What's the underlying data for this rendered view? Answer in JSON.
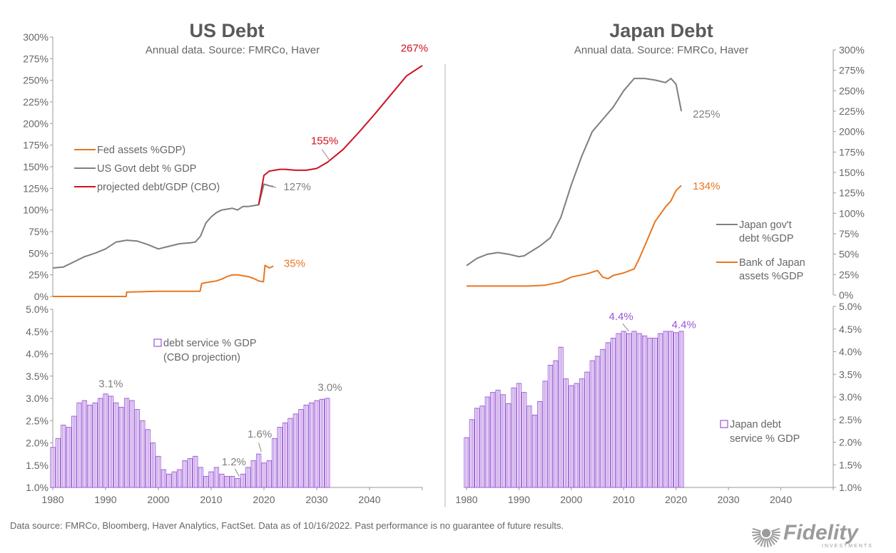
{
  "colors": {
    "fed": "#E87722",
    "govt": "#7F7F7F",
    "cbo": "#D0101E",
    "debt_service": "#9A55D6",
    "axis": "#9a9a9a",
    "logo": "#9B9B9B"
  },
  "footer": "Data source: FMRCo, Bloomberg, Haver Analytics, FactSet. Data as of 10/16/2022. Past performance is no guarantee of future results.",
  "logo": {
    "text": "Fidelity",
    "subtext": "INVESTMENTS"
  },
  "chart_data": [
    {
      "type": "line",
      "panel": "us-top",
      "title": "US Debt",
      "subtitle": "Annual data.  Source: FMRCo, Haver",
      "ylim": [
        0,
        300
      ],
      "xlim": [
        1980,
        2050
      ],
      "y_ticks": [
        "0%",
        "25%",
        "50%",
        "75%",
        "100%",
        "125%",
        "150%",
        "175%",
        "200%",
        "225%",
        "250%",
        "275%",
        "300%"
      ],
      "legend": [
        "Fed assets %GDP)",
        "US Govt debt % GDP",
        "projected debt/GDP (CBO)"
      ],
      "series": [
        {
          "name": "Fed assets %GDP)",
          "color": "fed",
          "x": [
            1980,
            1993.9,
            1994,
            2000,
            2007.9,
            2008.2,
            2009,
            2010,
            2011,
            2012,
            2013,
            2014,
            2015,
            2016,
            2017,
            2018,
            2019,
            2019.9,
            2020.2,
            2021,
            2021.8
          ],
          "y": [
            0,
            0,
            5,
            6,
            6,
            15,
            16,
            17,
            18,
            20,
            23,
            25,
            25,
            24,
            23,
            21,
            18,
            17,
            36,
            33,
            35
          ]
        },
        {
          "name": "US Govt debt % GDP",
          "color": "govt",
          "x": [
            1980,
            1982,
            1984,
            1986,
            1988,
            1990,
            1992,
            1994,
            1996,
            1998,
            2000,
            2002,
            2004,
            2006,
            2007,
            2008,
            2009,
            2010,
            2011,
            2012,
            2013,
            2014,
            2015,
            2016,
            2017,
            2018,
            2019,
            2020,
            2021,
            2021.8
          ],
          "y": [
            33,
            34,
            40,
            46,
            50,
            55,
            63,
            65,
            64,
            60,
            55,
            58,
            61,
            62,
            63,
            70,
            85,
            92,
            97,
            100,
            101,
            102,
            100,
            104,
            104,
            105,
            106,
            130,
            128,
            127
          ]
        },
        {
          "name": "projected debt/GDP (CBO)",
          "color": "cbo",
          "x": [
            2019,
            2020,
            2021,
            2022,
            2023,
            2024,
            2026,
            2028,
            2030,
            2032,
            2035,
            2038,
            2041,
            2044,
            2047,
            2050
          ],
          "y": [
            106,
            140,
            145,
            146,
            147,
            147,
            146,
            146,
            148,
            155,
            170,
            190,
            211,
            233,
            255,
            267
          ]
        }
      ],
      "annotations": [
        {
          "text": "267%",
          "x": 2048.5,
          "y": 283,
          "color": "cbo"
        },
        {
          "text": "155%",
          "x": 2031.5,
          "y": 176,
          "color": "cbo"
        },
        {
          "text": "127%",
          "x": 2026.3,
          "y": 123,
          "color": "govt"
        },
        {
          "text": "35%",
          "x": 2025.8,
          "y": 34,
          "color": "fed"
        }
      ]
    },
    {
      "type": "bar",
      "panel": "us-bottom",
      "title": "",
      "ylim": [
        1.0,
        5.0
      ],
      "xlim": [
        1980,
        2050
      ],
      "x_ticks": [
        "1980",
        "1990",
        "2000",
        "2010",
        "2020",
        "2030",
        "2040"
      ],
      "y_ticks": [
        "1.0%",
        "1.5%",
        "2.0%",
        "2.5%",
        "3.0%",
        "3.5%",
        "4.0%",
        "4.5%",
        "5.0%"
      ],
      "legend": [
        "debt service % GDP",
        "(CBO projection)"
      ],
      "series": [
        {
          "name": "debt service % GDP",
          "color": "debt_service",
          "x": [
            1980,
            1981,
            1982,
            1983,
            1984,
            1985,
            1986,
            1987,
            1988,
            1989,
            1990,
            1991,
            1992,
            1993,
            1994,
            1995,
            1996,
            1997,
            1998,
            1999,
            2000,
            2001,
            2002,
            2003,
            2004,
            2005,
            2006,
            2007,
            2008,
            2009,
            2010,
            2011,
            2012,
            2013,
            2014,
            2015,
            2016,
            2017,
            2018,
            2019,
            2020,
            2021,
            2022,
            2023,
            2024,
            2025,
            2026,
            2027,
            2028,
            2029,
            2030,
            2031,
            2032
          ],
          "y": [
            1.9,
            2.1,
            2.4,
            2.35,
            2.6,
            2.9,
            2.95,
            2.85,
            2.9,
            3.0,
            3.1,
            3.05,
            2.9,
            2.8,
            3.0,
            2.95,
            2.75,
            2.5,
            2.3,
            2.0,
            1.7,
            1.4,
            1.3,
            1.35,
            1.4,
            1.6,
            1.65,
            1.7,
            1.45,
            1.25,
            1.35,
            1.45,
            1.3,
            1.25,
            1.25,
            1.2,
            1.3,
            1.45,
            1.6,
            1.75,
            1.55,
            1.6,
            2.1,
            2.35,
            2.45,
            2.55,
            2.65,
            2.75,
            2.85,
            2.9,
            2.95,
            2.98,
            3.0
          ]
        }
      ],
      "annotations": [
        {
          "text": "3.1%",
          "x": 1991,
          "y": 3.25,
          "color": "govt"
        },
        {
          "text": "1.2%",
          "x": 2014.3,
          "y": 1.5,
          "color": "govt"
        },
        {
          "text": "1.6%",
          "x": 2019.2,
          "y": 2.12,
          "color": "govt"
        },
        {
          "text": "3.0%",
          "x": 2032.5,
          "y": 3.17,
          "color": "govt"
        }
      ]
    },
    {
      "type": "line",
      "panel": "japan-top",
      "title": "Japan Debt",
      "subtitle": "Annual data.  Source: FMRCo, Haver",
      "ylim": [
        0,
        300
      ],
      "xlim": [
        1980,
        2050
      ],
      "y_ticks": [
        "0%",
        "25%",
        "50%",
        "75%",
        "100%",
        "125%",
        "150%",
        "175%",
        "200%",
        "225%",
        "250%",
        "275%",
        "300%"
      ],
      "legend": [
        "Japan gov't debt %GDP",
        "Bank of Japan assets %GDP"
      ],
      "series": [
        {
          "name": "Japan gov't debt %GDP",
          "color": "govt",
          "x": [
            1980,
            1982,
            1984,
            1986,
            1988,
            1990,
            1991,
            1992,
            1994,
            1996,
            1998,
            2000,
            2002,
            2004,
            2006,
            2008,
            2010,
            2012,
            2014,
            2016,
            2018,
            2019,
            2020,
            2021
          ],
          "y": [
            36,
            45,
            50,
            52,
            50,
            47,
            48,
            52,
            60,
            70,
            95,
            135,
            170,
            200,
            215,
            230,
            250,
            265,
            265,
            263,
            260,
            265,
            258,
            225
          ]
        },
        {
          "name": "Bank of Japan assets %GDP",
          "color": "fed",
          "x": [
            1980,
            1984,
            1988,
            1992,
            1995,
            1998,
            2000,
            2003,
            2005,
            2006,
            2007,
            2008,
            2010,
            2012,
            2013,
            2014,
            2016,
            2018,
            2019,
            2020,
            2021
          ],
          "y": [
            11,
            11,
            11,
            11,
            12,
            16,
            22,
            26,
            30,
            22,
            20,
            24,
            27,
            32,
            45,
            60,
            90,
            108,
            115,
            128,
            134
          ]
        }
      ],
      "annotations": [
        {
          "text": "225%",
          "x": 2025.8,
          "y": 217,
          "color": "govt"
        },
        {
          "text": "134%",
          "x": 2025.8,
          "y": 129,
          "color": "fed"
        }
      ]
    },
    {
      "type": "bar",
      "panel": "japan-bottom",
      "title": "",
      "ylim": [
        1.0,
        5.0
      ],
      "xlim": [
        1980,
        2050
      ],
      "x_ticks": [
        "1980",
        "1990",
        "2000",
        "2010",
        "2020",
        "2030",
        "2040"
      ],
      "y_ticks": [
        "1.0%",
        "1.5%",
        "2.0%",
        "2.5%",
        "3.0%",
        "3.5%",
        "4.0%",
        "4.5%",
        "5.0%"
      ],
      "legend": [
        "Japan debt",
        "service % GDP"
      ],
      "series": [
        {
          "name": "Japan debt service % GDP",
          "color": "debt_service",
          "x": [
            1980,
            1981,
            1982,
            1983,
            1984,
            1985,
            1986,
            1987,
            1988,
            1989,
            1990,
            1991,
            1992,
            1993,
            1994,
            1995,
            1996,
            1997,
            1998,
            1999,
            2000,
            2001,
            2002,
            2003,
            2004,
            2005,
            2006,
            2007,
            2008,
            2009,
            2010,
            2011,
            2012,
            2013,
            2014,
            2015,
            2016,
            2017,
            2018,
            2019,
            2020,
            2021
          ],
          "y": [
            2.1,
            2.5,
            2.75,
            2.8,
            3.0,
            3.1,
            3.15,
            3.05,
            2.85,
            3.2,
            3.3,
            3.1,
            2.8,
            2.6,
            2.9,
            3.35,
            3.7,
            3.8,
            4.1,
            3.4,
            3.25,
            3.3,
            3.4,
            3.55,
            3.8,
            3.9,
            4.05,
            4.2,
            4.3,
            4.4,
            4.45,
            4.4,
            4.45,
            4.4,
            4.35,
            4.3,
            4.3,
            4.4,
            4.45,
            4.45,
            4.42,
            4.45
          ]
        }
      ],
      "annotations": [
        {
          "text": "4.4%",
          "x": 2009.5,
          "y": 4.7,
          "color": "debt_service"
        },
        {
          "text": "4.4%",
          "x": 2021.5,
          "y": 4.52,
          "color": "debt_service"
        }
      ]
    }
  ]
}
